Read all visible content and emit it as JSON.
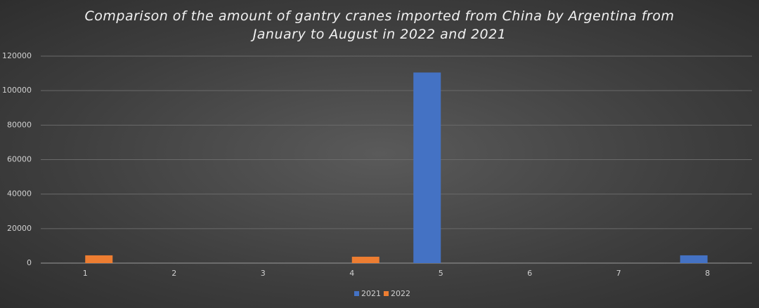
{
  "chart_data": {
    "type": "bar",
    "title": "Comparison of the amount of gantry cranes imported from China by Argentina from January to August in 2022 and 2021",
    "categories": [
      "1",
      "2",
      "3",
      "4",
      "5",
      "6",
      "7",
      "8"
    ],
    "series": [
      {
        "name": "2021",
        "color": "#4472c4",
        "values": [
          0,
          0,
          0,
          0,
          110500,
          0,
          0,
          4500
        ]
      },
      {
        "name": "2022",
        "color": "#ed7d31",
        "values": [
          4500,
          0,
          0,
          3700,
          0,
          0,
          0,
          0
        ]
      }
    ],
    "ylim": [
      0,
      120000
    ],
    "yticks": [
      0,
      20000,
      40000,
      60000,
      80000,
      100000,
      120000
    ],
    "grid": true
  }
}
